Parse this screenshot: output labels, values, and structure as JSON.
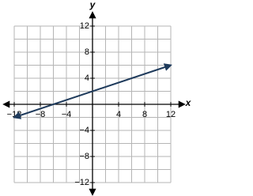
{
  "chart_data": {
    "type": "line",
    "x_label": "x",
    "y_label": "y",
    "xlim": [
      -12,
      12
    ],
    "ylim": [
      -12,
      12
    ],
    "xticks": [
      {
        "value": -12,
        "label": "−12"
      },
      {
        "value": -8,
        "label": "−8"
      },
      {
        "value": -4,
        "label": "−4"
      },
      4,
      8,
      12
    ],
    "yticks": [
      {
        "value": -12,
        "label": "−12"
      },
      {
        "value": -8,
        "label": "−8"
      },
      {
        "value": -4,
        "label": "−4"
      },
      4,
      8,
      12
    ],
    "xgrid": [
      -12,
      -10,
      -8,
      -6,
      -4,
      -2,
      0,
      2,
      4,
      6,
      8,
      10,
      12
    ],
    "ygrid": [
      -12,
      -10,
      -8,
      -6,
      -4,
      -2,
      0,
      2,
      4,
      6,
      8,
      10,
      12
    ],
    "grid": true,
    "series": [
      {
        "color": "#1f3b5c",
        "x": [
          -12,
          12
        ],
        "y": [
          -2,
          6
        ]
      }
    ]
  }
}
